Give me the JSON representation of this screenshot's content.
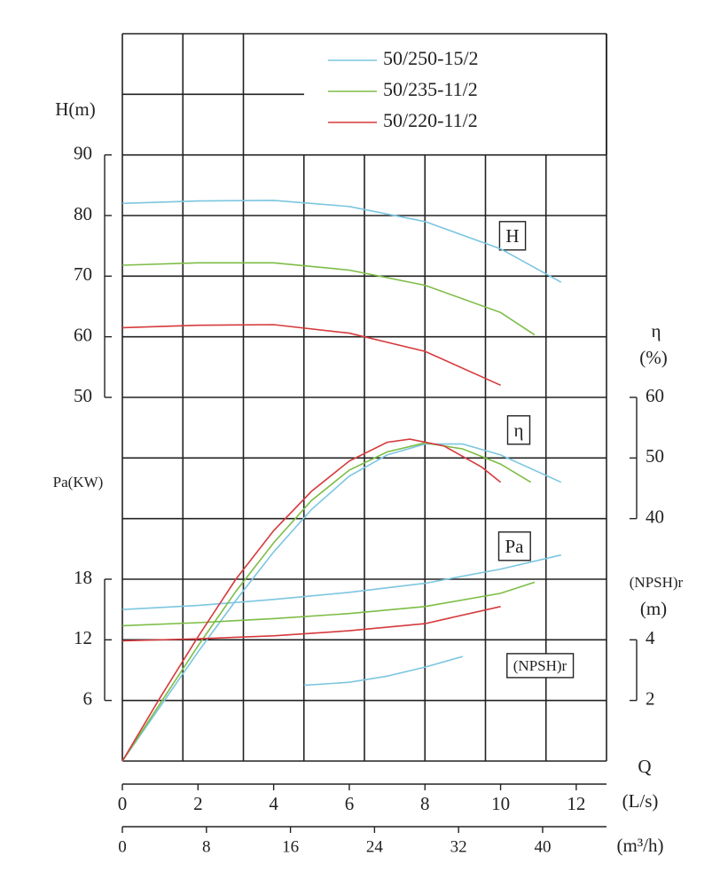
{
  "chart_data": {
    "type": "line",
    "xlabel": "Q",
    "xunit": "(L/s)",
    "xlim": [
      0,
      12.8
    ],
    "xticks": [
      0,
      2,
      4,
      6,
      8,
      10,
      12
    ],
    "x2unit": "(m³/h)",
    "x2lim": [
      0,
      46.08
    ],
    "x2ticks": [
      0,
      8,
      16,
      24,
      32,
      40
    ],
    "ylabel": "H(m)",
    "ylim": [
      -10,
      110
    ],
    "yticks": [
      50,
      60,
      70,
      80,
      90
    ],
    "y2label": "η",
    "y2unit": "(%)",
    "y2lim": [
      0,
      120
    ],
    "y2ticks": [
      40,
      50,
      60
    ],
    "y3label": "Pa(KW)",
    "y3lim": [
      0,
      72
    ],
    "y3ticks": [
      6,
      12,
      18
    ],
    "y4label": "(NPSH)r",
    "y4unit": "(m)",
    "y4lim": [
      0,
      24
    ],
    "y4ticks": [
      2,
      4
    ],
    "curve_labels": [
      "H",
      "η",
      "Pa",
      "(NPSH)r"
    ],
    "series": [
      {
        "name": "50/250-15/2",
        "color": "#7cc6e0",
        "curves": [
          {
            "axis": "y",
            "x": [
              0,
              2,
              4,
              6,
              8,
              10,
              11.6
            ],
            "values": [
              82,
              82.4,
              82.5,
              81.5,
              79,
              74.5,
              69
            ]
          },
          {
            "axis": "y2",
            "x": [
              0,
              1,
              2,
              3,
              4,
              5,
              6,
              7,
              8,
              9,
              10,
              11.6
            ],
            "values": [
              0,
              9,
              18,
              26.5,
              34.5,
              41.5,
              47,
              50.5,
              52.3,
              52.3,
              50.5,
              46
            ]
          },
          {
            "axis": "y3",
            "x": [
              0,
              2,
              4,
              6,
              8,
              10,
              11.6
            ],
            "values": [
              15,
              15.4,
              16,
              16.7,
              17.6,
              19,
              20.4
            ]
          },
          {
            "axis": "y4",
            "x": [
              4.8,
              6,
              7,
              8,
              9
            ],
            "values": [
              2.5,
              2.6,
              2.8,
              3.1,
              3.45
            ]
          }
        ]
      },
      {
        "name": "50/235-11/2",
        "color": "#7dbd45",
        "curves": [
          {
            "axis": "y",
            "x": [
              0,
              2,
              4,
              6,
              8,
              10,
              10.9
            ],
            "values": [
              71.8,
              72.2,
              72.2,
              71,
              68.5,
              64,
              60.3
            ]
          },
          {
            "axis": "y2",
            "x": [
              0,
              1,
              2,
              3,
              4,
              5,
              6,
              7,
              8,
              9,
              10,
              10.8
            ],
            "values": [
              0,
              9.5,
              19,
              28,
              36,
              43,
              48,
              51,
              52.5,
              51.5,
              49,
              46
            ]
          },
          {
            "axis": "y3",
            "x": [
              0,
              2,
              4,
              6,
              8,
              10,
              10.9
            ],
            "values": [
              13.4,
              13.7,
              14.1,
              14.6,
              15.3,
              16.6,
              17.7
            ]
          }
        ]
      },
      {
        "name": "50/220-11/2",
        "color": "#d63a3c",
        "curves": [
          {
            "axis": "y",
            "x": [
              0,
              2,
              4,
              6,
              8,
              10
            ],
            "values": [
              61.5,
              61.9,
              62,
              60.6,
              57.6,
              52
            ]
          },
          {
            "axis": "y2",
            "x": [
              0,
              1,
              2,
              3,
              4,
              5,
              6,
              7,
              7.6,
              8.5,
              9.5,
              10
            ],
            "values": [
              0,
              10.5,
              20.5,
              30,
              38,
              44.5,
              49.5,
              52.6,
              53.1,
              52,
              48.5,
              46
            ]
          },
          {
            "axis": "y3",
            "x": [
              0,
              2,
              4,
              6,
              8,
              10
            ],
            "values": [
              11.9,
              12.1,
              12.4,
              12.9,
              13.6,
              15.3
            ]
          }
        ]
      }
    ]
  }
}
